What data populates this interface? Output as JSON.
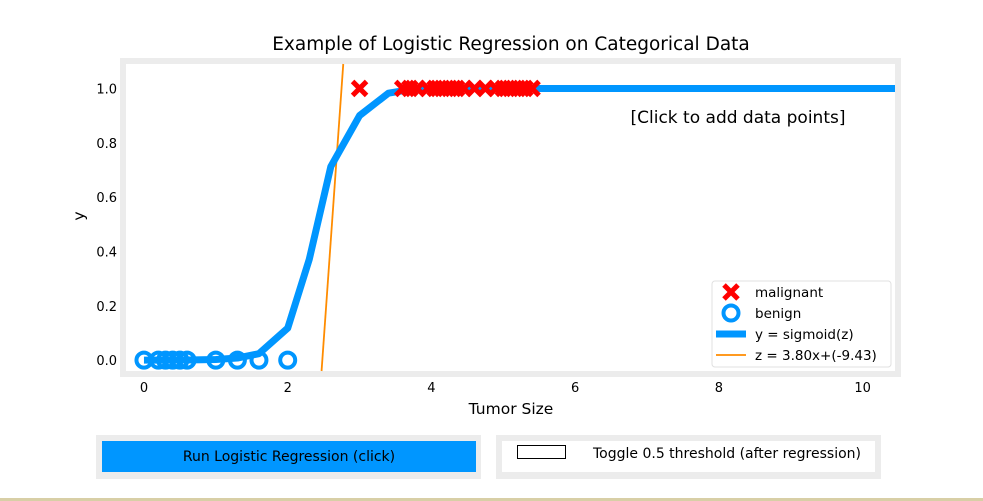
{
  "chart_data": {
    "type": "scatter",
    "title": "Example of Logistic Regression on Categorical Data",
    "xlabel": "Tumor Size",
    "ylabel": "y",
    "xlim": [
      -0.25,
      10.45
    ],
    "ylim": [
      -0.04,
      1.09
    ],
    "xticks": [
      0,
      2,
      4,
      6,
      8,
      10
    ],
    "yticks": [
      0.0,
      0.2,
      0.4,
      0.6,
      0.8,
      1.0
    ],
    "xtick_labels": [
      "0",
      "2",
      "4",
      "6",
      "8",
      "10"
    ],
    "ytick_labels": [
      "0.0",
      "0.2",
      "0.4",
      "0.6",
      "0.8",
      "1.0"
    ],
    "grid": false,
    "annotation": "[Click to add data points]",
    "legend_position": "lower-right",
    "series": [
      {
        "name": "malignant",
        "marker": "x",
        "color": "#ff0000",
        "x": [
          3.0,
          3.6,
          3.7,
          3.8,
          3.95,
          4.05,
          4.15,
          4.25,
          4.35,
          4.45,
          4.6,
          4.75,
          4.9,
          5.0,
          5.1,
          5.2,
          5.3,
          5.4
        ],
        "y": [
          1,
          1,
          1,
          1,
          1,
          1,
          1,
          1,
          1,
          1,
          1,
          1,
          1,
          1,
          1,
          1,
          1,
          1
        ]
      },
      {
        "name": "benign",
        "marker": "o",
        "color": "#0096ff",
        "x": [
          0.0,
          0.2,
          0.3,
          0.4,
          0.5,
          0.6,
          1.0,
          1.3,
          1.6,
          2.0
        ],
        "y": [
          0,
          0,
          0,
          0,
          0,
          0,
          0,
          0,
          0,
          0
        ]
      },
      {
        "name": "y = sigmoid(z)",
        "type": "line",
        "color": "#0096ff",
        "x": [
          0.0,
          0.2,
          0.3,
          0.4,
          0.5,
          0.6,
          1.0,
          1.3,
          1.6,
          2.0,
          2.3,
          2.6,
          3.0,
          3.4,
          3.6,
          3.8,
          4.0,
          4.3,
          4.6,
          5.0,
          5.5,
          6.0,
          7.0,
          8.0,
          9.0,
          10.0,
          10.45
        ],
        "y": [
          0.0001,
          0.0002,
          0.0002,
          0.0003,
          0.0005,
          0.0007,
          0.0025,
          0.0077,
          0.0238,
          0.1177,
          0.3711,
          0.7124,
          0.9002,
          0.9825,
          0.9912,
          0.9956,
          0.9978,
          0.9993,
          0.9998,
          1.0,
          1.0,
          1.0,
          1.0,
          1.0,
          1.0,
          1.0,
          1.0
        ]
      },
      {
        "name": "z = 3.80x+(-9.43)",
        "type": "line",
        "color": "#ff8c00",
        "x": [
          2.471,
          2.773
        ],
        "y": [
          -0.04,
          1.09
        ]
      }
    ]
  },
  "controls": {
    "run_button_label": "Run Logistic Regression (click)",
    "toggle_label": "Toggle 0.5 threshold (after regression)"
  }
}
